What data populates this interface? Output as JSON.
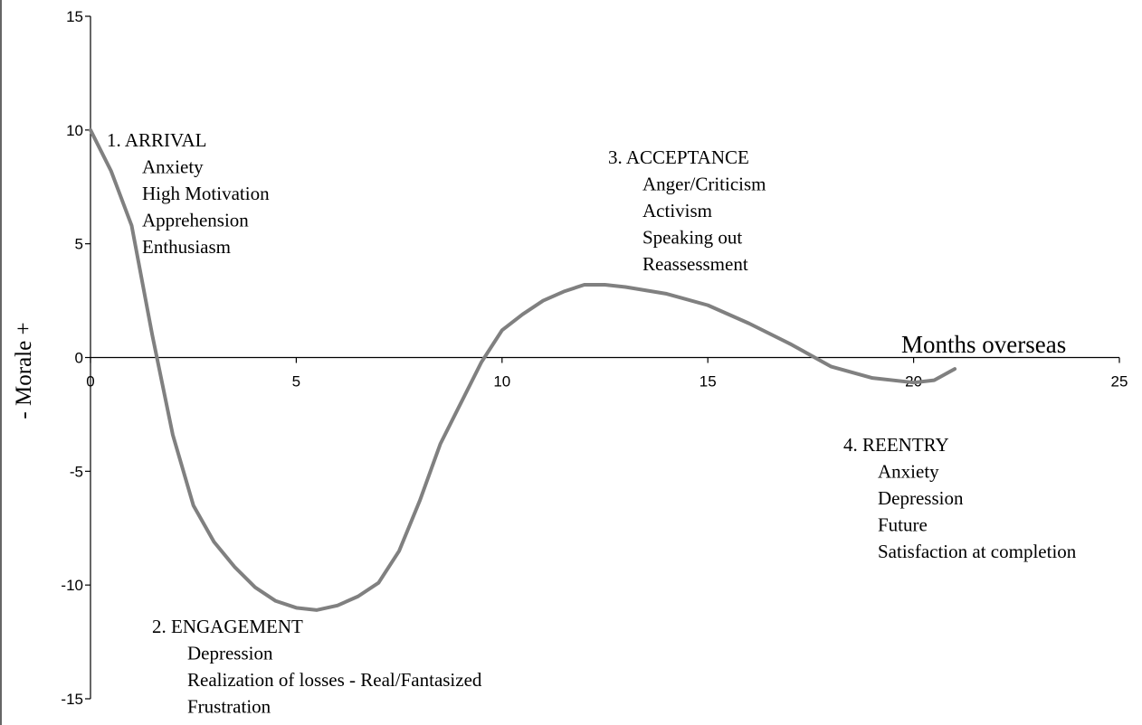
{
  "chart_data": {
    "type": "line",
    "x_label": "Months overseas",
    "y_label": "-  Morale  +",
    "x": [
      0,
      0.5,
      1,
      1.5,
      2,
      2.5,
      3,
      3.5,
      4,
      4.5,
      5,
      5.5,
      6,
      6.5,
      7,
      7.5,
      8,
      8.5,
      9,
      9.5,
      10,
      10.5,
      11,
      11.5,
      12,
      12.5,
      13,
      14,
      15,
      16,
      17,
      18,
      19,
      20,
      20.5,
      21
    ],
    "series": [
      {
        "color": "#808080",
        "values": [
          10,
          8.2,
          5.8,
          1.0,
          -3.4,
          -6.5,
          -8.1,
          -9.2,
          -10.1,
          -10.7,
          -11.0,
          -11.1,
          -10.9,
          -10.5,
          -9.9,
          -8.5,
          -6.3,
          -3.8,
          -2.0,
          -0.2,
          1.2,
          1.9,
          2.5,
          2.9,
          3.2,
          3.2,
          3.1,
          2.8,
          2.3,
          1.5,
          0.6,
          -0.4,
          -0.9,
          -1.1,
          -1.0,
          -0.5
        ]
      }
    ],
    "xlim": [
      0,
      25
    ],
    "xticks": [
      0,
      5,
      10,
      15,
      20,
      25
    ],
    "ylim": [
      -15,
      15
    ],
    "yticks": [
      -15,
      -10,
      -5,
      0,
      5,
      10,
      15
    ],
    "annotations": [
      {
        "title": "1. ARRIVAL",
        "lines": [
          "Anxiety",
          "High Motivation",
          "Apprehension",
          "Enthusiasm"
        ]
      },
      {
        "title": "2. ENGAGEMENT",
        "lines": [
          "Depression",
          "Realization of losses - Real/Fantasized",
          "Frustration"
        ]
      },
      {
        "title": "3. ACCEPTANCE",
        "lines": [
          "Anger/Criticism",
          "Activism",
          "Speaking out",
          "Reassessment"
        ]
      },
      {
        "title": "4. REENTRY",
        "lines": [
          "Anxiety",
          "Depression",
          "Future",
          "Satisfaction at completion"
        ]
      }
    ]
  }
}
